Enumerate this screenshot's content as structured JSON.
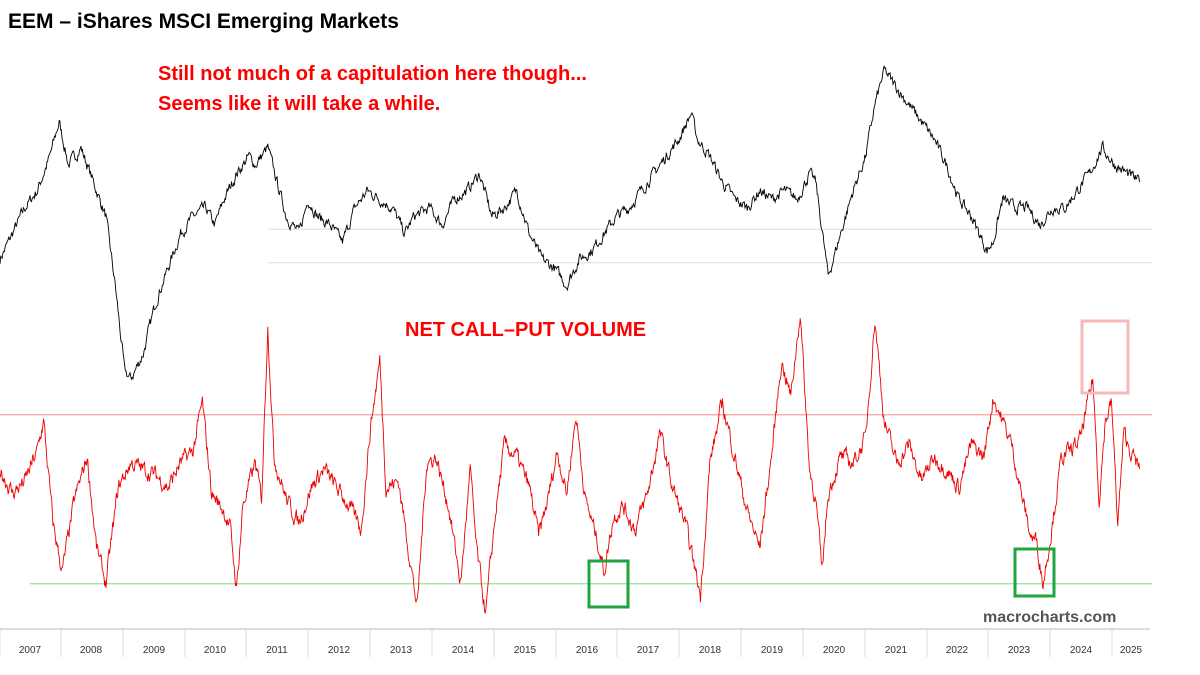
{
  "title": "EEM – iShares MSCI Emerging Markets",
  "annotations": {
    "line1": "Still not much of a capitulation here though...",
    "line2": "Seems like it will take a while."
  },
  "watermark": "macrocharts.com",
  "colors": {
    "price": "#000000",
    "volume": "#ee0000",
    "upper_threshold": "#f4a0a0",
    "lower_threshold": "#9fdca4",
    "support_lines": "#cde6ee",
    "highlight_high": "#f7b8b8",
    "highlight_low": "#1fa640"
  },
  "chart_data": [
    {
      "type": "line",
      "title": "EEM – iShares MSCI Emerging Markets",
      "x_range": [
        2006.9,
        2025.4
      ],
      "series": [
        {
          "points": [
            [
              2006.9,
              33
            ],
            [
              2007.1,
              36
            ],
            [
              2007.3,
              39
            ],
            [
              2007.5,
              41
            ],
            [
              2007.7,
              45
            ],
            [
              2007.85,
              49
            ],
            [
              2008.0,
              44
            ],
            [
              2008.2,
              46
            ],
            [
              2008.4,
              42
            ],
            [
              2008.6,
              38
            ],
            [
              2008.75,
              30
            ],
            [
              2008.9,
              20
            ],
            [
              2009.0,
              19
            ],
            [
              2009.2,
              22
            ],
            [
              2009.4,
              28
            ],
            [
              2009.6,
              32
            ],
            [
              2009.8,
              36
            ],
            [
              2010.0,
              38
            ],
            [
              2010.2,
              39
            ],
            [
              2010.35,
              37
            ],
            [
              2010.5,
              40
            ],
            [
              2010.7,
              43
            ],
            [
              2010.9,
              45
            ],
            [
              2011.0,
              44
            ],
            [
              2011.2,
              46
            ],
            [
              2011.35,
              42
            ],
            [
              2011.5,
              38
            ],
            [
              2011.7,
              36
            ],
            [
              2011.85,
              40
            ],
            [
              2012.0,
              38
            ],
            [
              2012.2,
              37
            ],
            [
              2012.4,
              35
            ],
            [
              2012.6,
              39
            ],
            [
              2012.8,
              41
            ],
            [
              2013.0,
              40
            ],
            [
              2013.2,
              39
            ],
            [
              2013.4,
              36
            ],
            [
              2013.55,
              38
            ],
            [
              2013.8,
              39
            ],
            [
              2014.0,
              37
            ],
            [
              2014.2,
              40
            ],
            [
              2014.4,
              41
            ],
            [
              2014.6,
              43
            ],
            [
              2014.8,
              38
            ],
            [
              2015.0,
              39
            ],
            [
              2015.2,
              41
            ],
            [
              2015.4,
              36
            ],
            [
              2015.6,
              33
            ],
            [
              2015.8,
              32
            ],
            [
              2016.0,
              30
            ],
            [
              2016.2,
              33
            ],
            [
              2016.4,
              34
            ],
            [
              2016.6,
              36
            ],
            [
              2016.8,
              38
            ],
            [
              2017.0,
              39
            ],
            [
              2017.2,
              41
            ],
            [
              2017.4,
              43
            ],
            [
              2017.6,
              45
            ],
            [
              2017.8,
              47
            ],
            [
              2018.0,
              50
            ],
            [
              2018.1,
              47
            ],
            [
              2018.3,
              45
            ],
            [
              2018.5,
              42
            ],
            [
              2018.7,
              40
            ],
            [
              2018.9,
              39
            ],
            [
              2019.1,
              41
            ],
            [
              2019.3,
              40
            ],
            [
              2019.5,
              41
            ],
            [
              2019.7,
              40
            ],
            [
              2019.9,
              43
            ],
            [
              2020.0,
              42
            ],
            [
              2020.2,
              31
            ],
            [
              2020.4,
              36
            ],
            [
              2020.6,
              41
            ],
            [
              2020.8,
              45
            ],
            [
              2020.95,
              51
            ],
            [
              2021.1,
              55
            ],
            [
              2021.3,
              53
            ],
            [
              2021.5,
              51
            ],
            [
              2021.7,
              49
            ],
            [
              2021.9,
              47
            ],
            [
              2022.1,
              44
            ],
            [
              2022.3,
              40
            ],
            [
              2022.5,
              38
            ],
            [
              2022.75,
              34
            ],
            [
              2022.85,
              35
            ],
            [
              2023.0,
              40
            ],
            [
              2023.2,
              39
            ],
            [
              2023.4,
              39
            ],
            [
              2023.6,
              37
            ],
            [
              2023.8,
              39
            ],
            [
              2024.0,
              39
            ],
            [
              2024.2,
              41
            ],
            [
              2024.4,
              43
            ],
            [
              2024.6,
              46
            ],
            [
              2024.8,
              44
            ],
            [
              2025.0,
              43
            ],
            [
              2025.2,
              42
            ]
          ]
        }
      ]
    },
    {
      "type": "line",
      "title": "NET CALL–PUT VOLUME",
      "x_range": [
        2006.9,
        2025.4
      ],
      "series": [
        {
          "points": [
            [
              2006.9,
              0.1
            ],
            [
              2007.1,
              -0.3
            ],
            [
              2007.3,
              -0.1
            ],
            [
              2007.5,
              0.4
            ],
            [
              2007.6,
              0.9
            ],
            [
              2007.75,
              -0.8
            ],
            [
              2007.9,
              -1.6
            ],
            [
              2008.1,
              -0.4
            ],
            [
              2008.3,
              0.3
            ],
            [
              2008.45,
              -1.2
            ],
            [
              2008.6,
              -1.8
            ],
            [
              2008.8,
              -0.2
            ],
            [
              2009.0,
              0.2
            ],
            [
              2009.2,
              0.1
            ],
            [
              2009.4,
              0.0
            ],
            [
              2009.6,
              -0.2
            ],
            [
              2009.8,
              0.2
            ],
            [
              2010.0,
              0.4
            ],
            [
              2010.15,
              1.2
            ],
            [
              2010.3,
              -0.3
            ],
            [
              2010.5,
              -0.6
            ],
            [
              2010.6,
              -0.9
            ],
            [
              2010.7,
              -1.9
            ],
            [
              2010.8,
              -0.5
            ],
            [
              2011.0,
              0.2
            ],
            [
              2011.1,
              -0.4
            ],
            [
              2011.2,
              2.5
            ],
            [
              2011.3,
              0.3
            ],
            [
              2011.5,
              -0.4
            ],
            [
              2011.7,
              -0.8
            ],
            [
              2011.9,
              -0.2
            ],
            [
              2012.1,
              0.1
            ],
            [
              2012.3,
              -0.2
            ],
            [
              2012.5,
              -0.5
            ],
            [
              2012.7,
              -0.9
            ],
            [
              2012.85,
              0.8
            ],
            [
              2013.0,
              1.9
            ],
            [
              2013.1,
              -0.2
            ],
            [
              2013.3,
              -0.1
            ],
            [
              2013.5,
              -1.5
            ],
            [
              2013.6,
              -2.2
            ],
            [
              2013.75,
              0.2
            ],
            [
              2013.9,
              0.3
            ],
            [
              2014.1,
              -0.5
            ],
            [
              2014.3,
              -1.8
            ],
            [
              2014.45,
              0.1
            ],
            [
              2014.55,
              -1.2
            ],
            [
              2014.7,
              -2.3
            ],
            [
              2014.85,
              -0.7
            ],
            [
              2015.0,
              0.5
            ],
            [
              2015.2,
              0.3
            ],
            [
              2015.4,
              -0.2
            ],
            [
              2015.55,
              -1.0
            ],
            [
              2015.7,
              -0.4
            ],
            [
              2015.85,
              0.4
            ],
            [
              2016.0,
              -0.3
            ],
            [
              2016.15,
              1.0
            ],
            [
              2016.3,
              -0.4
            ],
            [
              2016.5,
              -1.1
            ],
            [
              2016.6,
              -1.6
            ],
            [
              2016.75,
              -0.7
            ],
            [
              2016.9,
              -0.5
            ],
            [
              2017.1,
              -0.9
            ],
            [
              2017.3,
              -0.3
            ],
            [
              2017.5,
              0.7
            ],
            [
              2017.7,
              -0.2
            ],
            [
              2017.9,
              -0.8
            ],
            [
              2018.05,
              -1.5
            ],
            [
              2018.15,
              -2.0
            ],
            [
              2018.3,
              0.2
            ],
            [
              2018.5,
              1.2
            ],
            [
              2018.7,
              0.3
            ],
            [
              2018.9,
              -0.6
            ],
            [
              2019.1,
              -1.2
            ],
            [
              2019.3,
              0.4
            ],
            [
              2019.45,
              1.9
            ],
            [
              2019.6,
              1.3
            ],
            [
              2019.75,
              2.7
            ],
            [
              2019.9,
              0.1
            ],
            [
              2020.0,
              -0.4
            ],
            [
              2020.1,
              -1.6
            ],
            [
              2020.2,
              -0.3
            ],
            [
              2020.4,
              0.3
            ],
            [
              2020.6,
              0.2
            ],
            [
              2020.8,
              0.6
            ],
            [
              2020.95,
              2.6
            ],
            [
              2021.1,
              0.9
            ],
            [
              2021.3,
              0.2
            ],
            [
              2021.5,
              0.5
            ],
            [
              2021.7,
              -0.1
            ],
            [
              2021.9,
              0.3
            ],
            [
              2022.1,
              0.1
            ],
            [
              2022.3,
              -0.2
            ],
            [
              2022.5,
              0.5
            ],
            [
              2022.7,
              0.3
            ],
            [
              2022.85,
              1.3
            ],
            [
              2023.0,
              0.9
            ],
            [
              2023.15,
              0.5
            ],
            [
              2023.3,
              -0.3
            ],
            [
              2023.45,
              -1.0
            ],
            [
              2023.55,
              -1.1
            ],
            [
              2023.65,
              -1.8
            ],
            [
              2023.8,
              -0.8
            ],
            [
              2023.95,
              0.3
            ],
            [
              2024.1,
              0.4
            ],
            [
              2024.25,
              0.6
            ],
            [
              2024.45,
              1.6
            ],
            [
              2024.55,
              -0.4
            ],
            [
              2024.65,
              0.9
            ],
            [
              2024.75,
              1.2
            ],
            [
              2024.85,
              -0.8
            ],
            [
              2024.95,
              0.7
            ],
            [
              2025.05,
              0.4
            ],
            [
              2025.2,
              0.1
            ]
          ]
        }
      ],
      "reference_lines": {
        "upper": 1.0,
        "lower": -1.8
      }
    }
  ],
  "x_axis": {
    "tick_labels": [
      "2007",
      "2008",
      "2009",
      "2010",
      "2011",
      "2012",
      "2013",
      "2014",
      "2015",
      "2016",
      "2017",
      "2018",
      "2019",
      "2020",
      "2021",
      "2022",
      "2023",
      "2024",
      "2025"
    ]
  }
}
